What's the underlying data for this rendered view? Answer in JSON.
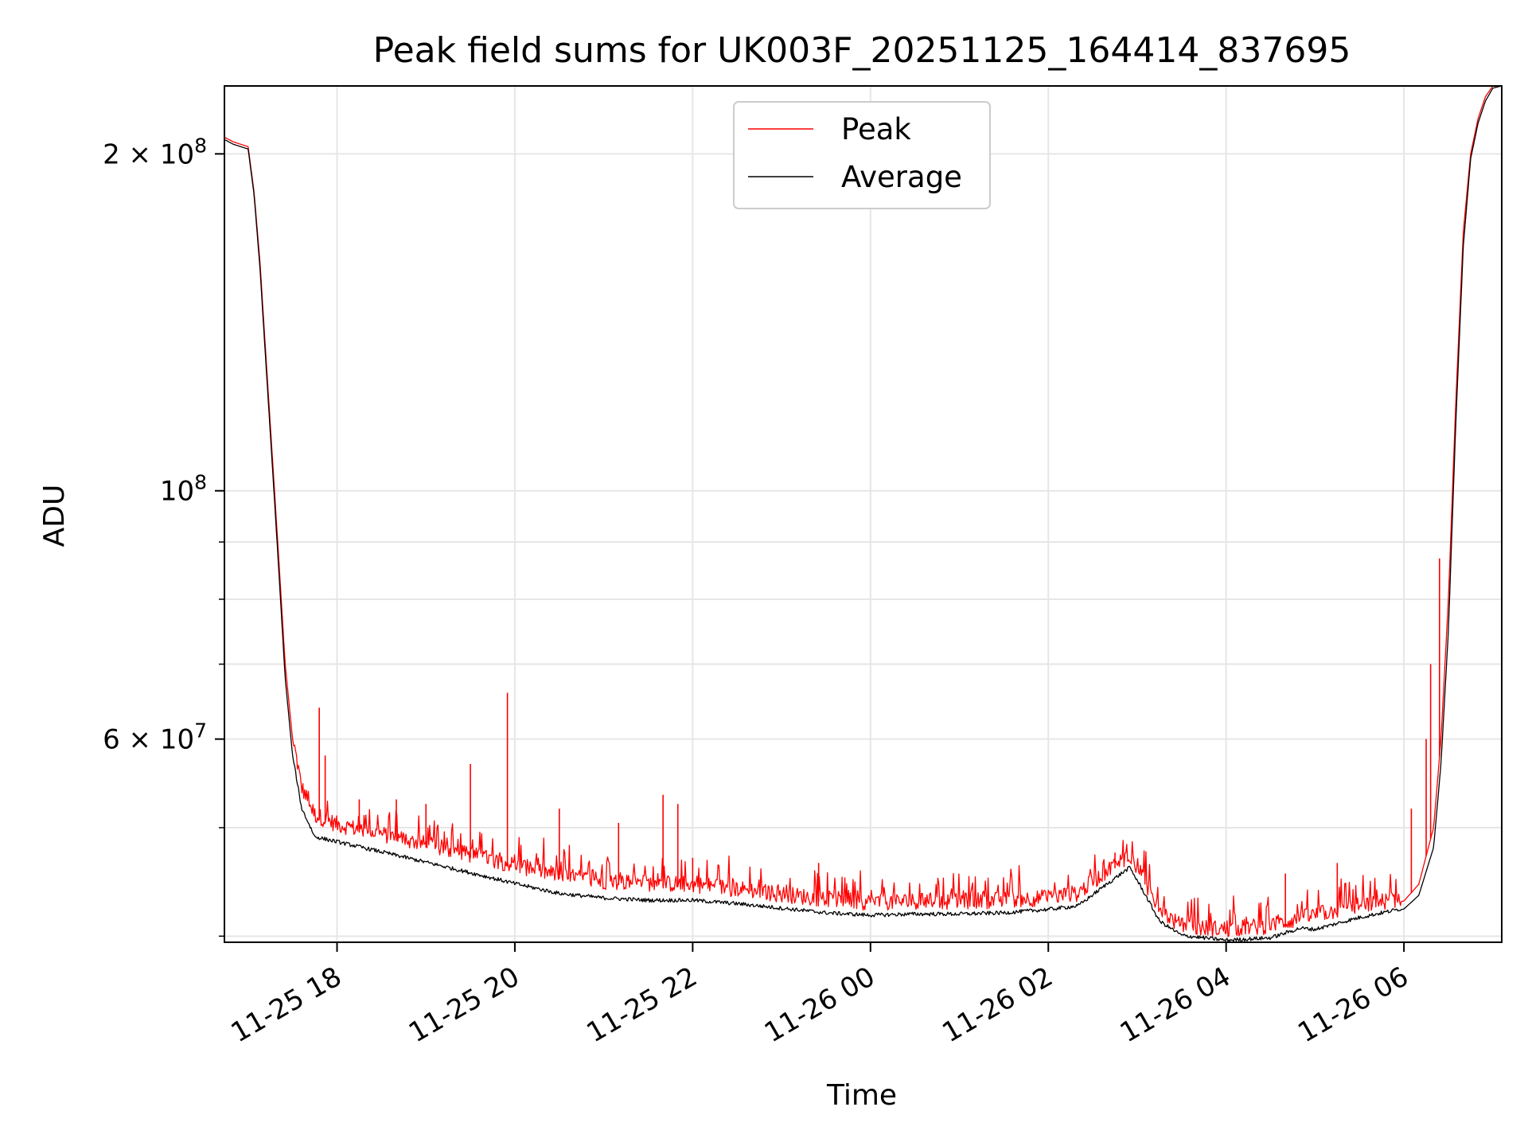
{
  "chart_data": {
    "type": "line",
    "title": "Peak field sums for UK003F_20251125_164414_837695",
    "xlabel": "Time",
    "ylabel": "ADU",
    "yscale": "log",
    "ylim": [
      39500000,
      230000000
    ],
    "xlim": [
      "2025-11-25 16:44",
      "2025-11-26 07:06"
    ],
    "grid": true,
    "legend_position": "top-center",
    "x_ticks": [
      {
        "value": "2025-11-25 18:00",
        "label": "11-25 18"
      },
      {
        "value": "2025-11-25 20:00",
        "label": "11-25 20"
      },
      {
        "value": "2025-11-25 22:00",
        "label": "11-25 22"
      },
      {
        "value": "2025-11-26 00:00",
        "label": "11-26 00"
      },
      {
        "value": "2025-11-26 02:00",
        "label": "11-26 02"
      },
      {
        "value": "2025-11-26 04:00",
        "label": "11-26 04"
      },
      {
        "value": "2025-11-26 06:00",
        "label": "11-26 06"
      }
    ],
    "y_ticks": [
      {
        "value": 200000000,
        "mant": "2",
        "label": "2 × 10",
        "exp": "8"
      },
      {
        "value": 100000000,
        "mant": "",
        "label": "10",
        "exp": "8"
      },
      {
        "value": 60000000,
        "mant": "6",
        "label": "6 × 10",
        "exp": "7"
      }
    ],
    "y_minor_ticks": [
      40000000,
      50000000,
      70000000,
      80000000,
      90000000,
      300000000
    ],
    "series": [
      {
        "name": "Peak",
        "color": "#ff0000",
        "x": [
          "2025-11-25 16:44",
          "2025-11-25 16:50",
          "2025-11-25 17:00",
          "2025-11-25 17:04",
          "2025-11-25 17:08",
          "2025-11-25 17:14",
          "2025-11-25 17:20",
          "2025-11-25 17:25",
          "2025-11-25 17:30",
          "2025-11-25 17:36",
          "2025-11-25 17:45",
          "2025-11-25 18:00",
          "2025-11-25 18:30",
          "2025-11-25 19:00",
          "2025-11-25 19:30",
          "2025-11-25 20:00",
          "2025-11-25 20:30",
          "2025-11-25 21:00",
          "2025-11-25 21:30",
          "2025-11-25 22:00",
          "2025-11-25 22:30",
          "2025-11-25 23:00",
          "2025-11-25 23:30",
          "2025-11-26 00:00",
          "2025-11-26 00:30",
          "2025-11-26 01:00",
          "2025-11-26 01:30",
          "2025-11-26 02:00",
          "2025-11-26 02:20",
          "2025-11-26 02:40",
          "2025-11-26 02:55",
          "2025-11-26 03:05",
          "2025-11-26 03:15",
          "2025-11-26 03:30",
          "2025-11-26 04:00",
          "2025-11-26 04:30",
          "2025-11-26 04:50",
          "2025-11-26 05:00",
          "2025-11-26 05:30",
          "2025-11-26 06:00",
          "2025-11-26 06:10",
          "2025-11-26 06:20",
          "2025-11-26 06:25",
          "2025-11-26 06:30",
          "2025-11-26 06:35",
          "2025-11-26 06:40",
          "2025-11-26 06:45",
          "2025-11-26 06:50",
          "2025-11-26 06:55",
          "2025-11-26 07:00",
          "2025-11-26 07:06"
        ],
        "y": [
          207000000,
          205000000,
          203000000,
          185000000,
          160000000,
          120000000,
          90000000,
          70000000,
          60000000,
          54000000,
          51000000,
          50000000,
          49000000,
          48000000,
          47000000,
          46000000,
          45000000,
          44500000,
          44300000,
          44200000,
          43800000,
          43300000,
          42900000,
          42600000,
          42700000,
          42700000,
          42800000,
          43000000,
          43400000,
          45500000,
          47000000,
          44500000,
          42000000,
          40500000,
          40300000,
          40600000,
          41200000,
          41500000,
          42300000,
          43000000,
          44500000,
          50000000,
          60000000,
          80000000,
          120000000,
          170000000,
          200000000,
          215000000,
          225000000,
          230000000,
          230000000
        ],
        "spikes": [
          {
            "x": "2025-11-25 17:48",
            "y": 64000000
          },
          {
            "x": "2025-11-25 17:52",
            "y": 58000000
          },
          {
            "x": "2025-11-25 18:15",
            "y": 53000000
          },
          {
            "x": "2025-11-25 18:40",
            "y": 53000000
          },
          {
            "x": "2025-11-25 19:00",
            "y": 52500000
          },
          {
            "x": "2025-11-25 19:30",
            "y": 57000000
          },
          {
            "x": "2025-11-25 19:55",
            "y": 66000000
          },
          {
            "x": "2025-11-25 20:30",
            "y": 52000000
          },
          {
            "x": "2025-11-25 21:10",
            "y": 50500000
          },
          {
            "x": "2025-11-25 21:40",
            "y": 53500000
          },
          {
            "x": "2025-11-25 21:50",
            "y": 52500000
          },
          {
            "x": "2025-11-25 22:00",
            "y": 47000000
          },
          {
            "x": "2025-11-25 23:25",
            "y": 46500000
          },
          {
            "x": "2025-11-26 02:45",
            "y": 47500000
          },
          {
            "x": "2025-11-26 04:40",
            "y": 45500000
          },
          {
            "x": "2025-11-26 05:15",
            "y": 46500000
          },
          {
            "x": "2025-11-26 06:05",
            "y": 52000000
          },
          {
            "x": "2025-11-26 06:15",
            "y": 60000000
          },
          {
            "x": "2025-11-26 06:18",
            "y": 70000000
          },
          {
            "x": "2025-11-26 06:24",
            "y": 87000000
          }
        ]
      },
      {
        "name": "Average",
        "color": "#000000",
        "x": [
          "2025-11-25 16:44",
          "2025-11-25 16:50",
          "2025-11-25 17:00",
          "2025-11-25 17:04",
          "2025-11-25 17:08",
          "2025-11-25 17:14",
          "2025-11-25 17:20",
          "2025-11-25 17:25",
          "2025-11-25 17:30",
          "2025-11-25 17:36",
          "2025-11-25 17:45",
          "2025-11-25 18:00",
          "2025-11-25 18:30",
          "2025-11-25 19:00",
          "2025-11-25 19:30",
          "2025-11-25 20:00",
          "2025-11-25 20:30",
          "2025-11-25 21:00",
          "2025-11-25 21:30",
          "2025-11-25 22:00",
          "2025-11-25 22:30",
          "2025-11-25 23:00",
          "2025-11-25 23:30",
          "2025-11-26 00:00",
          "2025-11-26 00:30",
          "2025-11-26 01:00",
          "2025-11-26 01:30",
          "2025-11-26 02:00",
          "2025-11-26 02:20",
          "2025-11-26 02:40",
          "2025-11-26 02:55",
          "2025-11-26 03:05",
          "2025-11-26 03:15",
          "2025-11-26 03:30",
          "2025-11-26 04:00",
          "2025-11-26 04:30",
          "2025-11-26 04:50",
          "2025-11-26 05:00",
          "2025-11-26 05:30",
          "2025-11-26 06:00",
          "2025-11-26 06:10",
          "2025-11-26 06:20",
          "2025-11-26 06:25",
          "2025-11-26 06:30",
          "2025-11-26 06:35",
          "2025-11-26 06:40",
          "2025-11-26 06:45",
          "2025-11-26 06:50",
          "2025-11-26 06:55",
          "2025-11-26 07:00",
          "2025-11-26 07:06"
        ],
        "y": [
          206000000,
          204000000,
          202000000,
          184000000,
          158000000,
          118000000,
          88000000,
          68000000,
          58000000,
          52000000,
          49000000,
          48500000,
          47500000,
          46500000,
          45500000,
          44500000,
          43600000,
          43200000,
          43000000,
          43000000,
          42700000,
          42300000,
          41900000,
          41700000,
          41800000,
          41800000,
          41900000,
          42200000,
          42500000,
          44500000,
          46000000,
          43600000,
          41200000,
          40000000,
          39600000,
          39800000,
          40600000,
          40500000,
          41500000,
          42300000,
          43500000,
          48000000,
          57000000,
          75000000,
          115000000,
          165000000,
          198000000,
          213000000,
          223000000,
          229000000,
          230000000
        ]
      }
    ]
  }
}
